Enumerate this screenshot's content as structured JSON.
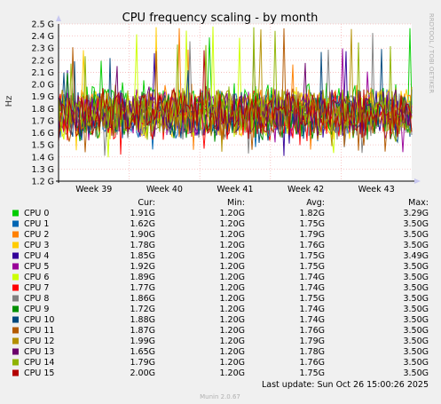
{
  "chart_data": {
    "type": "line",
    "title": "CPU frequency scaling - by month",
    "ylabel": "Hz",
    "side_label": "RRDTOOL / TOBI OETIKER",
    "yticks": [
      "1.2 G",
      "1.3 G",
      "1.4 G",
      "1.5 G",
      "1.6 G",
      "1.7 G",
      "1.8 G",
      "1.9 G",
      "2.0 G",
      "2.1 G",
      "2.2 G",
      "2.3 G",
      "2.4 G",
      "2.5 G"
    ],
    "ytick_values": [
      1.2,
      1.3,
      1.4,
      1.5,
      1.6,
      1.7,
      1.8,
      1.9,
      2.0,
      2.1,
      2.2,
      2.3,
      2.4,
      2.5
    ],
    "ylim": [
      1.2,
      2.5
    ],
    "x_categories": [
      "Week 39",
      "Week 40",
      "Week 41",
      "Week 42",
      "Week 43"
    ],
    "grid": true,
    "legend_headers": {
      "cur": "Cur:",
      "min": "Min:",
      "avg": "Avg:",
      "max": "Max:"
    },
    "series": [
      {
        "name": "CPU 0",
        "color": "#00cc00",
        "cur": "1.91G",
        "min": "1.20G",
        "avg": "1.82G",
        "max": "3.29G"
      },
      {
        "name": "CPU 1",
        "color": "#0066b3",
        "cur": "1.62G",
        "min": "1.20G",
        "avg": "1.75G",
        "max": "3.50G"
      },
      {
        "name": "CPU 2",
        "color": "#ff8000",
        "cur": "1.90G",
        "min": "1.20G",
        "avg": "1.79G",
        "max": "3.50G"
      },
      {
        "name": "CPU 3",
        "color": "#ffcc00",
        "cur": "1.78G",
        "min": "1.20G",
        "avg": "1.76G",
        "max": "3.50G"
      },
      {
        "name": "CPU 4",
        "color": "#330099",
        "cur": "1.85G",
        "min": "1.20G",
        "avg": "1.75G",
        "max": "3.49G"
      },
      {
        "name": "CPU 5",
        "color": "#990099",
        "cur": "1.92G",
        "min": "1.20G",
        "avg": "1.75G",
        "max": "3.50G"
      },
      {
        "name": "CPU 6",
        "color": "#ccff00",
        "cur": "1.89G",
        "min": "1.20G",
        "avg": "1.74G",
        "max": "3.50G"
      },
      {
        "name": "CPU 7",
        "color": "#ff0000",
        "cur": "1.77G",
        "min": "1.20G",
        "avg": "1.74G",
        "max": "3.50G"
      },
      {
        "name": "CPU 8",
        "color": "#808080",
        "cur": "1.86G",
        "min": "1.20G",
        "avg": "1.75G",
        "max": "3.50G"
      },
      {
        "name": "CPU 9",
        "color": "#008f00",
        "cur": "1.72G",
        "min": "1.20G",
        "avg": "1.74G",
        "max": "3.50G"
      },
      {
        "name": "CPU 10",
        "color": "#00487d",
        "cur": "1.88G",
        "min": "1.20G",
        "avg": "1.74G",
        "max": "3.50G"
      },
      {
        "name": "CPU 11",
        "color": "#b35a00",
        "cur": "1.87G",
        "min": "1.20G",
        "avg": "1.76G",
        "max": "3.50G"
      },
      {
        "name": "CPU 12",
        "color": "#b38f00",
        "cur": "1.99G",
        "min": "1.20G",
        "avg": "1.79G",
        "max": "3.50G"
      },
      {
        "name": "CPU 13",
        "color": "#6b006b",
        "cur": "1.65G",
        "min": "1.20G",
        "avg": "1.78G",
        "max": "3.50G"
      },
      {
        "name": "CPU 14",
        "color": "#8fb300",
        "cur": "1.79G",
        "min": "1.20G",
        "avg": "1.76G",
        "max": "3.50G"
      },
      {
        "name": "CPU 15",
        "color": "#b30000",
        "cur": "2.00G",
        "min": "1.20G",
        "avg": "1.75G",
        "max": "3.50G"
      }
    ]
  },
  "footer": {
    "last_update": "Last update: Sun Oct 26 15:00:26 2025",
    "version": "Munin 2.0.67"
  }
}
